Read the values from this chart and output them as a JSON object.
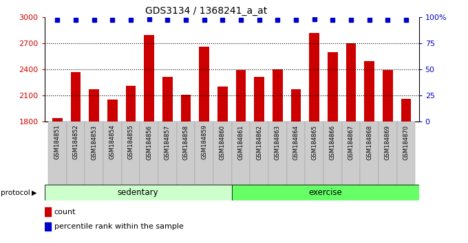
{
  "title": "GDS3134 / 1368241_a_at",
  "categories": [
    "GSM184851",
    "GSM184852",
    "GSM184853",
    "GSM184854",
    "GSM184855",
    "GSM184856",
    "GSM184857",
    "GSM184858",
    "GSM184859",
    "GSM184860",
    "GSM184861",
    "GSM184862",
    "GSM184863",
    "GSM184864",
    "GSM184865",
    "GSM184866",
    "GSM184867",
    "GSM184868",
    "GSM184869",
    "GSM184870"
  ],
  "bar_values": [
    1840,
    2370,
    2170,
    2050,
    2210,
    2790,
    2310,
    2110,
    2660,
    2200,
    2390,
    2310,
    2400,
    2170,
    2820,
    2600,
    2700,
    2490,
    2390,
    2060
  ],
  "percentile_values": [
    97,
    97,
    97,
    97,
    97,
    98,
    97,
    97,
    97,
    97,
    97,
    97,
    97,
    97,
    98,
    97,
    97,
    97,
    97,
    97
  ],
  "ylim_left": [
    1800,
    3000
  ],
  "ylim_right": [
    0,
    100
  ],
  "yticks_left": [
    1800,
    2100,
    2400,
    2700,
    3000
  ],
  "yticks_right": [
    0,
    25,
    50,
    75,
    100
  ],
  "bar_color": "#cc0000",
  "dot_color": "#0000cc",
  "sedentary_count": 10,
  "exercise_count": 10,
  "sedentary_label": "sedentary",
  "exercise_label": "exercise",
  "protocol_label": "protocol",
  "legend_count_label": "count",
  "legend_pct_label": "percentile rank within the sample",
  "sedentary_color": "#ccffcc",
  "exercise_color": "#66ff66",
  "xtick_bg_color": "#cccccc"
}
